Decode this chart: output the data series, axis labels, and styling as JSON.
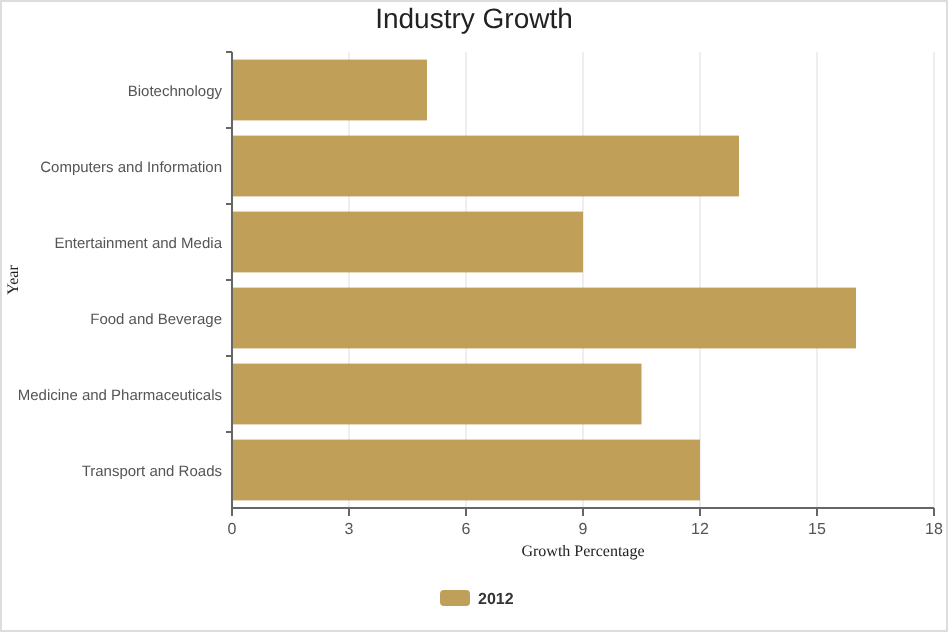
{
  "chart_data": {
    "type": "bar",
    "orientation": "horizontal",
    "title": "Industry Growth",
    "xlabel": "Growth Percentage",
    "ylabel": "Year",
    "categories": [
      "Biotechnology",
      "Computers and Information",
      "Entertainment and Media",
      "Food and Beverage",
      "Medicine and Pharmaceuticals",
      "Transport and Roads"
    ],
    "series": [
      {
        "name": "2012",
        "color": "#c0a058",
        "values": [
          5,
          13,
          9,
          16,
          10.5,
          12
        ]
      }
    ],
    "xlim": [
      0,
      18
    ],
    "xticks": [
      0,
      3,
      6,
      9,
      12,
      15,
      18
    ],
    "grid": "x",
    "legend": "bottom"
  }
}
